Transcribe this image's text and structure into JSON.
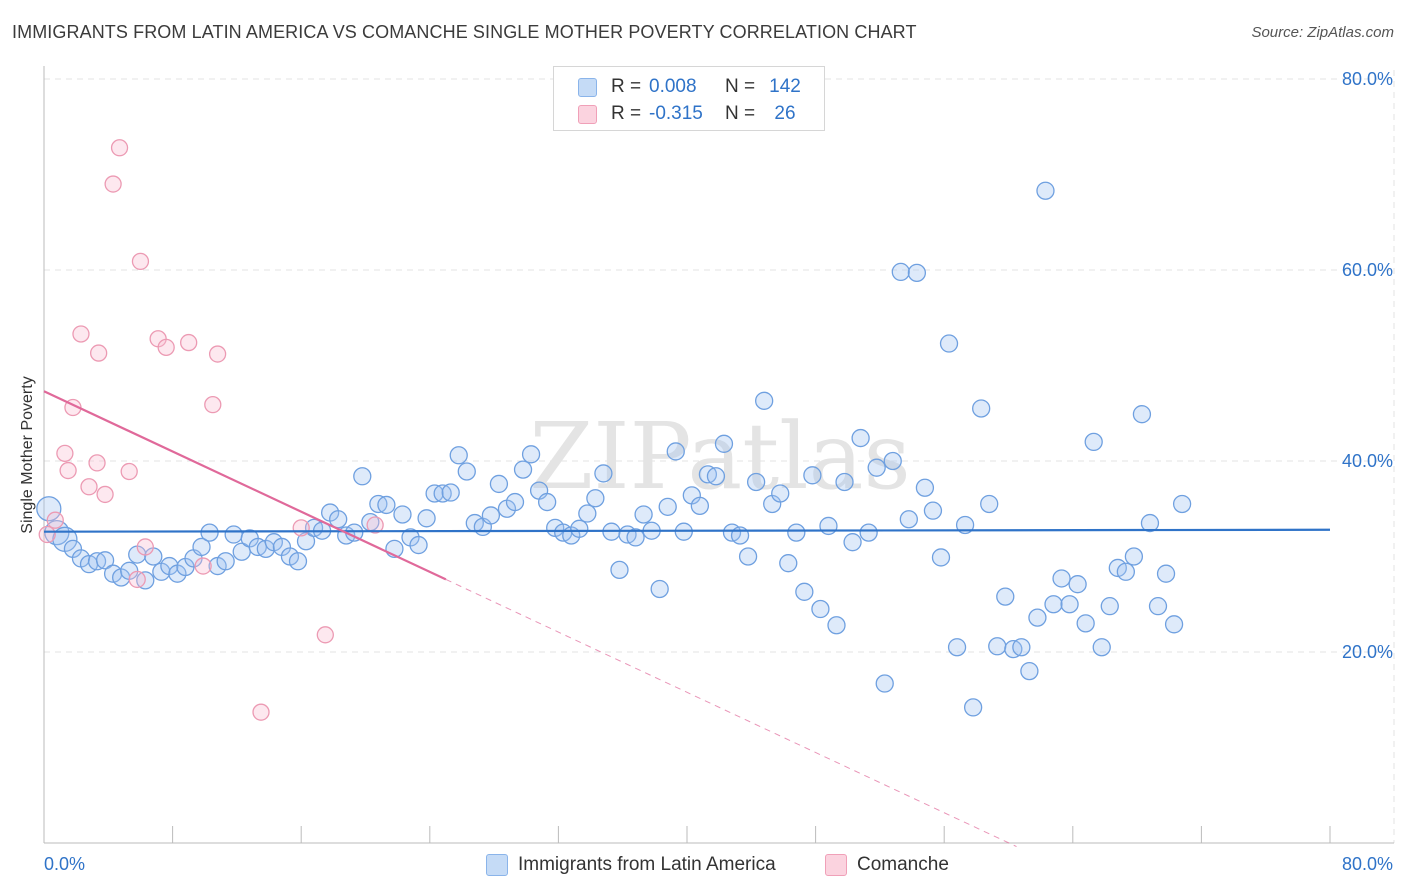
{
  "title": "IMMIGRANTS FROM LATIN AMERICA VS COMANCHE SINGLE MOTHER POVERTY CORRELATION CHART",
  "source": "Source: ZipAtlas.com",
  "watermark": "ZIPatlas",
  "legend": {
    "rows": [
      {
        "r_label": "R =",
        "r_value": "0.008",
        "n_label": "N =",
        "n_value": "142",
        "color": "#8ab4ea",
        "fill": "#c5dbf6"
      },
      {
        "r_label": "R =",
        "r_value": "-0.315",
        "n_label": "N =",
        "n_value": "26",
        "color": "#f0a0b8",
        "fill": "#fbd3df"
      }
    ]
  },
  "colors": {
    "blue_stroke": "#6fa0e0",
    "blue_fill": "rgba(160,196,240,0.35)",
    "blue_line": "#2f73c8",
    "pink_stroke": "#ec9ab3",
    "pink_fill": "rgba(248,190,208,0.35)",
    "pink_line": "#e0699a",
    "axis_text": "#2f73c8",
    "grid": "#e3e3e3"
  },
  "chart_data": {
    "type": "scatter",
    "ylabel": "Single Mother Poverty",
    "xlim": [
      0,
      80
    ],
    "ylim": [
      0,
      80
    ],
    "x_tick_labels": [
      {
        "value": 0,
        "label": "0.0%"
      },
      {
        "value": 80,
        "label": "80.0%"
      }
    ],
    "y_tick_labels": [
      {
        "value": 20,
        "label": "20.0%"
      },
      {
        "value": 40,
        "label": "40.0%"
      },
      {
        "value": 60,
        "label": "60.0%"
      },
      {
        "value": 80,
        "label": "80.0%"
      }
    ],
    "grid": true,
    "series": [
      {
        "name": "Immigrants from Latin America",
        "color": "blue",
        "trend": {
          "x": [
            0,
            80
          ],
          "y": [
            32.6,
            32.8
          ],
          "dashed_extension": false
        },
        "points": [
          [
            0.3,
            35.0
          ],
          [
            0.8,
            32.5
          ],
          [
            1.3,
            31.8
          ],
          [
            1.8,
            30.8
          ],
          [
            2.3,
            29.8
          ],
          [
            2.8,
            29.2
          ],
          [
            3.3,
            29.5
          ],
          [
            3.8,
            29.6
          ],
          [
            4.3,
            28.2
          ],
          [
            4.8,
            27.8
          ],
          [
            5.3,
            28.5
          ],
          [
            5.8,
            30.2
          ],
          [
            6.3,
            27.5
          ],
          [
            6.8,
            30.0
          ],
          [
            7.3,
            28.4
          ],
          [
            7.8,
            29.0
          ],
          [
            8.3,
            28.2
          ],
          [
            8.8,
            28.9
          ],
          [
            9.3,
            29.8
          ],
          [
            9.8,
            31.0
          ],
          [
            10.3,
            32.5
          ],
          [
            10.8,
            29.0
          ],
          [
            11.3,
            29.5
          ],
          [
            11.8,
            32.3
          ],
          [
            12.3,
            30.5
          ],
          [
            12.8,
            31.9
          ],
          [
            13.3,
            31.0
          ],
          [
            13.8,
            30.8
          ],
          [
            14.3,
            31.5
          ],
          [
            14.8,
            31.0
          ],
          [
            15.3,
            30.0
          ],
          [
            15.8,
            29.5
          ],
          [
            16.3,
            31.6
          ],
          [
            16.8,
            33.0
          ],
          [
            17.3,
            32.7
          ],
          [
            17.8,
            34.6
          ],
          [
            18.3,
            33.9
          ],
          [
            18.8,
            32.2
          ],
          [
            19.3,
            32.5
          ],
          [
            19.8,
            38.4
          ],
          [
            20.3,
            33.6
          ],
          [
            20.8,
            35.5
          ],
          [
            21.3,
            35.4
          ],
          [
            21.8,
            30.8
          ],
          [
            22.3,
            34.4
          ],
          [
            22.8,
            32.0
          ],
          [
            23.3,
            31.2
          ],
          [
            23.8,
            34.0
          ],
          [
            24.3,
            36.6
          ],
          [
            24.8,
            36.6
          ],
          [
            25.3,
            36.7
          ],
          [
            25.8,
            40.6
          ],
          [
            26.3,
            38.9
          ],
          [
            26.8,
            33.5
          ],
          [
            27.3,
            33.1
          ],
          [
            27.8,
            34.3
          ],
          [
            28.3,
            37.6
          ],
          [
            28.8,
            35.0
          ],
          [
            29.3,
            35.7
          ],
          [
            29.8,
            39.1
          ],
          [
            30.3,
            40.7
          ],
          [
            30.8,
            36.9
          ],
          [
            31.3,
            35.7
          ],
          [
            31.8,
            33.0
          ],
          [
            32.3,
            32.5
          ],
          [
            32.8,
            32.2
          ],
          [
            33.3,
            32.9
          ],
          [
            33.8,
            34.5
          ],
          [
            34.3,
            36.1
          ],
          [
            34.8,
            38.7
          ],
          [
            35.3,
            32.6
          ],
          [
            35.8,
            28.6
          ],
          [
            36.3,
            32.3
          ],
          [
            36.8,
            32.0
          ],
          [
            37.3,
            34.4
          ],
          [
            37.8,
            32.7
          ],
          [
            38.3,
            26.6
          ],
          [
            38.8,
            35.2
          ],
          [
            39.3,
            41.0
          ],
          [
            39.8,
            32.6
          ],
          [
            40.3,
            36.4
          ],
          [
            40.8,
            35.3
          ],
          [
            41.3,
            38.6
          ],
          [
            41.8,
            38.4
          ],
          [
            42.3,
            41.8
          ],
          [
            42.8,
            32.5
          ],
          [
            43.3,
            32.2
          ],
          [
            43.8,
            30.0
          ],
          [
            44.3,
            37.8
          ],
          [
            44.8,
            46.3
          ],
          [
            45.3,
            35.5
          ],
          [
            45.8,
            36.6
          ],
          [
            46.3,
            29.3
          ],
          [
            46.8,
            32.5
          ],
          [
            47.3,
            26.3
          ],
          [
            47.8,
            38.5
          ],
          [
            48.3,
            24.5
          ],
          [
            48.8,
            33.2
          ],
          [
            49.3,
            22.8
          ],
          [
            49.8,
            37.8
          ],
          [
            50.3,
            31.5
          ],
          [
            50.8,
            42.4
          ],
          [
            51.3,
            32.5
          ],
          [
            51.8,
            39.3
          ],
          [
            52.3,
            16.7
          ],
          [
            52.8,
            40.0
          ],
          [
            53.3,
            59.8
          ],
          [
            53.8,
            33.9
          ],
          [
            54.3,
            59.7
          ],
          [
            54.8,
            37.2
          ],
          [
            55.3,
            34.8
          ],
          [
            55.8,
            29.9
          ],
          [
            56.3,
            52.3
          ],
          [
            56.8,
            20.5
          ],
          [
            57.3,
            33.3
          ],
          [
            57.8,
            14.2
          ],
          [
            58.3,
            45.5
          ],
          [
            58.8,
            35.5
          ],
          [
            59.3,
            20.6
          ],
          [
            59.8,
            25.8
          ],
          [
            60.3,
            20.3
          ],
          [
            60.8,
            20.5
          ],
          [
            61.3,
            18.0
          ],
          [
            61.8,
            23.6
          ],
          [
            62.3,
            68.3
          ],
          [
            62.8,
            25.0
          ],
          [
            63.3,
            27.7
          ],
          [
            63.8,
            25.0
          ],
          [
            64.3,
            27.1
          ],
          [
            64.8,
            23.0
          ],
          [
            65.3,
            42.0
          ],
          [
            65.8,
            20.5
          ],
          [
            66.3,
            24.8
          ],
          [
            66.8,
            28.8
          ],
          [
            67.3,
            28.4
          ],
          [
            67.8,
            30.0
          ],
          [
            68.3,
            44.9
          ],
          [
            68.8,
            33.5
          ],
          [
            69.3,
            24.8
          ],
          [
            69.8,
            28.2
          ],
          [
            70.3,
            22.9
          ],
          [
            70.8,
            35.5
          ]
        ]
      },
      {
        "name": "Comanche",
        "color": "pink",
        "trend": {
          "x": [
            0,
            25
          ],
          "y": [
            47.3,
            27.6
          ],
          "dashed_extension": true,
          "dash_to_x": 60.5
        },
        "points": [
          [
            0.2,
            32.3
          ],
          [
            0.7,
            33.8
          ],
          [
            1.3,
            40.8
          ],
          [
            1.5,
            39.0
          ],
          [
            1.8,
            45.6
          ],
          [
            2.3,
            53.3
          ],
          [
            2.8,
            37.3
          ],
          [
            3.3,
            39.8
          ],
          [
            3.4,
            51.3
          ],
          [
            3.8,
            36.5
          ],
          [
            4.3,
            69.0
          ],
          [
            4.7,
            72.8
          ],
          [
            5.3,
            38.9
          ],
          [
            5.8,
            27.6
          ],
          [
            6.0,
            60.9
          ],
          [
            6.3,
            31.0
          ],
          [
            7.1,
            52.8
          ],
          [
            7.6,
            51.9
          ],
          [
            9.0,
            52.4
          ],
          [
            9.9,
            29.0
          ],
          [
            10.5,
            45.9
          ],
          [
            10.8,
            51.2
          ],
          [
            13.5,
            13.7
          ],
          [
            16.0,
            33.0
          ],
          [
            17.5,
            21.8
          ],
          [
            20.6,
            33.3
          ]
        ]
      }
    ]
  },
  "bottom_legend": [
    {
      "label": "Immigrants from Latin America",
      "color": "blue"
    },
    {
      "label": "Comanche",
      "color": "pink"
    }
  ]
}
